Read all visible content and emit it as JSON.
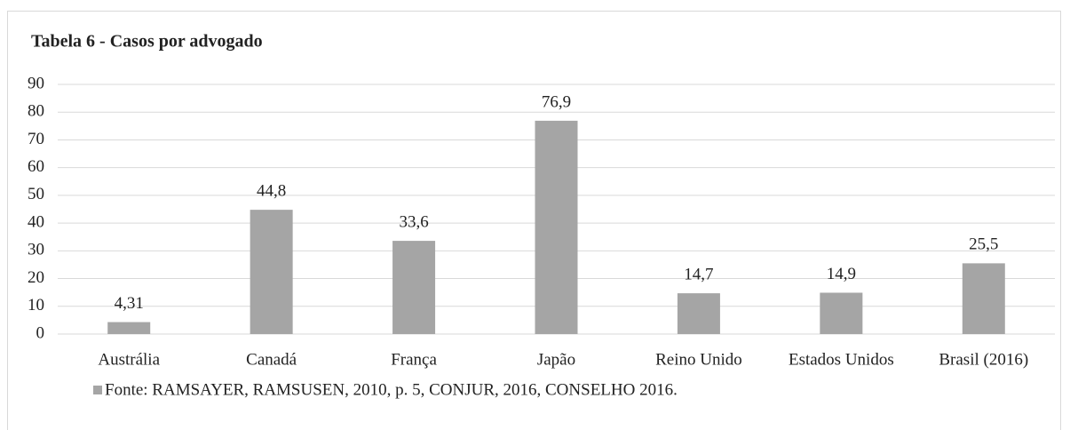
{
  "chart_data": {
    "type": "bar",
    "title": "Tabela 6 - Casos por advogado",
    "categories": [
      "Austrália",
      "Canadá",
      "França",
      "Japão",
      "Reino Unido",
      "Estados Unidos",
      "Brasil (2016)"
    ],
    "series": [
      {
        "name": "Fonte: RAMSAYER, RAMSUSEN, 2010, p. 5, CONJUR, 2016, CONSELHO 2016.",
        "color": "#a5a5a5",
        "values": [
          4.31,
          44.8,
          33.6,
          76.9,
          14.7,
          14.9,
          25.5
        ],
        "value_labels": [
          "4,31",
          "44,8",
          "33,6",
          "76,9",
          "14,7",
          "14,9",
          "25,5"
        ]
      }
    ],
    "ylim": [
      0,
      90
    ],
    "yticks": [
      0,
      10,
      20,
      30,
      40,
      50,
      60,
      70,
      80,
      90
    ],
    "grid": true,
    "legend": "bottom"
  }
}
